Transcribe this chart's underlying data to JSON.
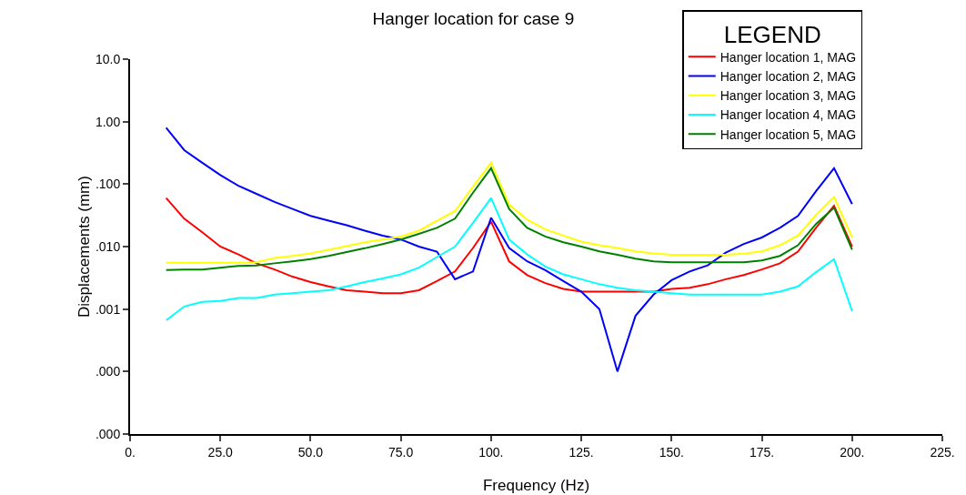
{
  "chart_data": {
    "type": "line",
    "title": "Hanger location for case 9",
    "xlabel": "Frequency (Hz)",
    "ylabel": "Displacements (mm)",
    "legend_title": "LEGEND",
    "legend": "top right",
    "log": "y",
    "grid": false,
    "marker": "none",
    "line_style": "solid",
    "x": [
      10,
      15,
      20,
      25,
      30,
      35,
      40,
      45,
      50,
      55,
      60,
      65,
      70,
      75,
      80,
      85,
      90,
      95,
      100,
      105,
      110,
      115,
      120,
      125,
      130,
      135,
      140,
      145,
      150,
      155,
      160,
      165,
      170,
      175,
      180,
      185,
      190,
      195,
      200
    ],
    "xlim": [
      0,
      225
    ],
    "xticks": [
      {
        "value": 0,
        "label": "0."
      },
      {
        "value": 25,
        "label": "25.0"
      },
      {
        "value": 50,
        "label": "50.0"
      },
      {
        "value": 75,
        "label": "75.0"
      },
      {
        "value": 100,
        "label": "100."
      },
      {
        "value": 125,
        "label": "125."
      },
      {
        "value": 150,
        "label": "150."
      },
      {
        "value": 175,
        "label": "175."
      },
      {
        "value": 200,
        "label": "200."
      },
      {
        "value": 225,
        "label": "225."
      }
    ],
    "ylim": [
      1e-05,
      10
    ],
    "yticks": [
      {
        "value": 10,
        "label": "10.0"
      },
      {
        "value": 1,
        "label": "1.00"
      },
      {
        "value": 0.1,
        "label": ".100"
      },
      {
        "value": 0.01,
        "label": ".010"
      },
      {
        "value": 0.001,
        "label": ".001"
      },
      {
        "value": 0.0001,
        "label": ".000"
      },
      {
        "value": 1e-05,
        "label": ".000"
      }
    ],
    "series": [
      {
        "name": "Hanger location 1, MAG",
        "color": "#ff0000",
        "values": [
          0.06,
          0.028,
          0.017,
          0.01,
          0.0075,
          0.0054,
          0.0043,
          0.0033,
          0.0027,
          0.0023,
          0.002,
          0.0019,
          0.0018,
          0.0018,
          0.002,
          0.0028,
          0.004,
          0.0095,
          0.025,
          0.0058,
          0.0035,
          0.0026,
          0.0021,
          0.0019,
          0.0019,
          0.0019,
          0.0019,
          0.0019,
          0.0021,
          0.0022,
          0.0025,
          0.003,
          0.0035,
          0.0043,
          0.0054,
          0.0083,
          0.02,
          0.045,
          0.01
        ]
      },
      {
        "name": "Hanger location 2, MAG",
        "color": "#0000ff",
        "values": [
          0.8,
          0.35,
          0.22,
          0.14,
          0.094,
          0.07,
          0.052,
          0.04,
          0.031,
          0.026,
          0.022,
          0.018,
          0.015,
          0.013,
          0.01,
          0.0083,
          0.003,
          0.004,
          0.029,
          0.0095,
          0.0058,
          0.0042,
          0.0028,
          0.0019,
          0.001,
          0.0001,
          0.00078,
          0.0017,
          0.0029,
          0.004,
          0.005,
          0.008,
          0.011,
          0.014,
          0.02,
          0.031,
          0.077,
          0.18,
          0.048
        ]
      },
      {
        "name": "Hanger location 3, MAG",
        "color": "#ffff00",
        "values": [
          0.0055,
          0.0055,
          0.0055,
          0.0055,
          0.0055,
          0.0056,
          0.0066,
          0.0071,
          0.0078,
          0.0089,
          0.0102,
          0.0117,
          0.013,
          0.0145,
          0.018,
          0.026,
          0.037,
          0.091,
          0.22,
          0.047,
          0.027,
          0.019,
          0.015,
          0.012,
          0.0105,
          0.0095,
          0.0084,
          0.0078,
          0.0074,
          0.0074,
          0.0074,
          0.0074,
          0.0077,
          0.0084,
          0.0105,
          0.015,
          0.032,
          0.062,
          0.014
        ]
      },
      {
        "name": "Hanger location 4, MAG",
        "color": "#00ffff",
        "values": [
          0.00066,
          0.0011,
          0.0013,
          0.00135,
          0.0015,
          0.0015,
          0.0017,
          0.0018,
          0.0019,
          0.002,
          0.0023,
          0.0027,
          0.0031,
          0.0036,
          0.0046,
          0.0068,
          0.01,
          0.024,
          0.06,
          0.013,
          0.0075,
          0.0048,
          0.0036,
          0.003,
          0.0025,
          0.0022,
          0.002,
          0.0019,
          0.0018,
          0.0017,
          0.0017,
          0.0017,
          0.0017,
          0.0017,
          0.0019,
          0.0023,
          0.0039,
          0.0063,
          0.00093
        ]
      },
      {
        "name": "Hanger location 5, MAG",
        "color": "#008000",
        "values": [
          0.0042,
          0.0043,
          0.0043,
          0.0046,
          0.0049,
          0.005,
          0.0054,
          0.0058,
          0.0063,
          0.0071,
          0.0082,
          0.0094,
          0.011,
          0.013,
          0.016,
          0.02,
          0.028,
          0.073,
          0.18,
          0.04,
          0.02,
          0.0145,
          0.0117,
          0.01,
          0.0084,
          0.0074,
          0.0064,
          0.0058,
          0.0056,
          0.0056,
          0.0056,
          0.0056,
          0.0056,
          0.006,
          0.0071,
          0.0105,
          0.023,
          0.042,
          0.0089
        ]
      }
    ]
  }
}
